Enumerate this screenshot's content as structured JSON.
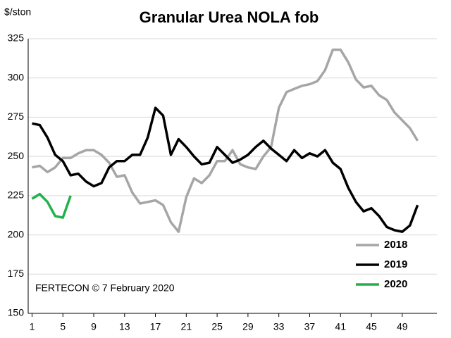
{
  "chart_data": {
    "type": "line",
    "title": "Granular Urea NOLA fob",
    "y_label": "$/ston",
    "annotation": "FERTECON  ©  7 February 2020",
    "x": [
      1,
      2,
      3,
      4,
      5,
      6,
      7,
      8,
      9,
      10,
      11,
      12,
      13,
      14,
      15,
      16,
      17,
      18,
      19,
      20,
      21,
      22,
      23,
      24,
      25,
      26,
      27,
      28,
      29,
      30,
      31,
      32,
      33,
      34,
      35,
      36,
      37,
      38,
      39,
      40,
      41,
      42,
      43,
      44,
      45,
      46,
      47,
      48,
      49,
      50,
      51
    ],
    "series": [
      {
        "name": "2018",
        "color": "#a6a6a6",
        "values": [
          243,
          244,
          240,
          243,
          249,
          249,
          252,
          254,
          254,
          251,
          246,
          237,
          238,
          227,
          220,
          221,
          222,
          219,
          208,
          202,
          224,
          236,
          233,
          238,
          247,
          247,
          254,
          245,
          243,
          242,
          250,
          256,
          281,
          291,
          293,
          295,
          296,
          298,
          305,
          318,
          318,
          310,
          299,
          294,
          295,
          289,
          286,
          278,
          273,
          268,
          260
        ]
      },
      {
        "name": "2019",
        "color": "#000000",
        "values": [
          271,
          270,
          262,
          251,
          247,
          238,
          239,
          234,
          231,
          233,
          243,
          247,
          247,
          251,
          251,
          262,
          281,
          276,
          251,
          261,
          256,
          250,
          245,
          246,
          256,
          251,
          246,
          248,
          251,
          256,
          260,
          255,
          251,
          247,
          254,
          249,
          252,
          250,
          254,
          246,
          242,
          230,
          221,
          215,
          217,
          212,
          205,
          203,
          202,
          206,
          219
        ]
      },
      {
        "name": "2020",
        "color": "#22b14c",
        "values": [
          223,
          226,
          221,
          212,
          211,
          225,
          null,
          null,
          null,
          null,
          null,
          null,
          null,
          null,
          null,
          null,
          null,
          null,
          null,
          null,
          null,
          null,
          null,
          null,
          null,
          null,
          null,
          null,
          null,
          null,
          null,
          null,
          null,
          null,
          null,
          null,
          null,
          null,
          null,
          null,
          null,
          null,
          null,
          null,
          null,
          null,
          null,
          null,
          null,
          null,
          null
        ]
      }
    ],
    "xlim": [
      0.5,
      53.5
    ],
    "xticks": [
      1,
      5,
      9,
      13,
      17,
      21,
      25,
      29,
      33,
      37,
      41,
      45,
      49
    ],
    "ylim": [
      150,
      325
    ],
    "yticks": [
      150,
      175,
      200,
      225,
      250,
      275,
      300,
      325
    ],
    "grid": true
  }
}
